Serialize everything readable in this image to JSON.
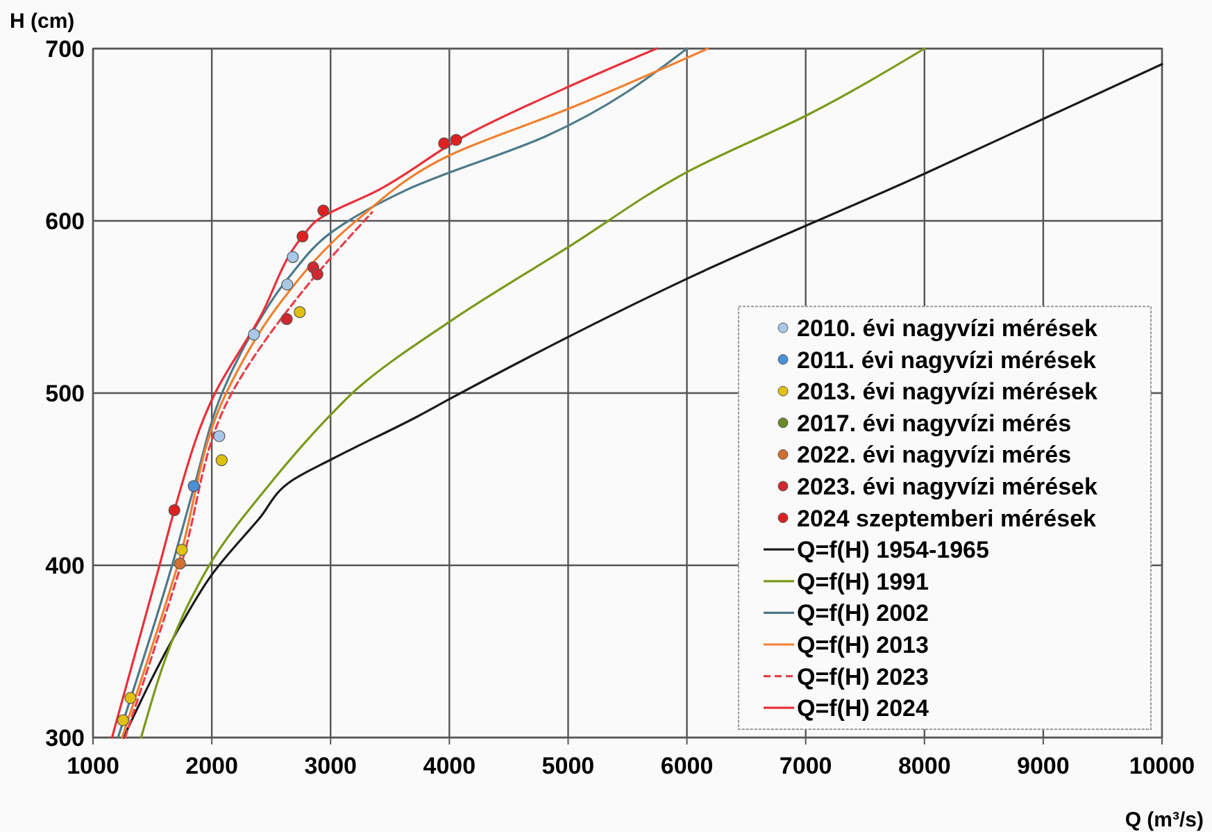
{
  "chart_data": {
    "type": "scatter",
    "ylabel": "H (cm)",
    "xlabel": "Q (m³/s)",
    "xlim": [
      1000,
      10000
    ],
    "xticks": [
      1000,
      2000,
      3000,
      4000,
      5000,
      6000,
      7000,
      8000,
      9000,
      10000
    ],
    "ylim": [
      300,
      700
    ],
    "yticks": [
      300,
      400,
      500,
      600,
      700
    ],
    "grid": true,
    "legend": "bottom right",
    "marker": "circle",
    "series": [
      {
        "name": "2010. évi nagyvízi mérések",
        "color": "#a8c8e8",
        "x": [
          2063,
          2355,
          2635,
          2682
        ],
        "values": [
          475,
          534,
          563,
          579
        ]
      },
      {
        "name": "2011. évi nagyvízi mérések",
        "color": "#4a90d8",
        "x": [
          1848
        ],
        "values": [
          446
        ]
      },
      {
        "name": "2013. évi nagyvízi mérések",
        "color": "#e0c010",
        "x": [
          1253,
          1315,
          1748,
          2083,
          2741
        ],
        "values": [
          310,
          323,
          409,
          461,
          547
        ]
      },
      {
        "name": "2017. évi nagyvízi mérés",
        "color": "#6a8a2a"
      },
      {
        "name": "2022. évi nagyvízi mérés",
        "color": "#d07030",
        "x": [
          1732
        ],
        "values": [
          401
        ]
      },
      {
        "name": "2023. évi nagyvízi mérések",
        "color": "#d02830",
        "x": [
          2631,
          2854,
          2889
        ],
        "values": [
          543,
          573,
          569
        ]
      },
      {
        "name": "2024 szeptemberi mérések",
        "color": "#e02020",
        "x": [
          1685,
          2764,
          2939,
          3956,
          4057
        ],
        "values": [
          432,
          591,
          606,
          645,
          647
        ]
      },
      {
        "name": "Q=f(H) 1954-1965",
        "color": "#1a1a1a",
        "type": "line",
        "marker": "none",
        "x": [
          1257,
          1736,
          2005,
          2398,
          2670,
          3020,
          3720,
          4014,
          6019,
          8021,
          9025,
          10000
        ],
        "values": [
          300,
          365,
          395,
          427,
          449,
          462,
          486,
          497,
          567,
          628,
          660,
          691
        ]
      },
      {
        "name": "Q=f(H) 1991",
        "color": "#7a9a1a",
        "type": "line",
        "marker": "none",
        "x": [
          1405,
          1814,
          2005,
          2474,
          2982,
          3215,
          4014,
          5007,
          6019,
          7029,
          8000
        ],
        "values": [
          300,
          379,
          403,
          446,
          486,
          502,
          542,
          585,
          629,
          662,
          700
        ]
      },
      {
        "name": "Q=f(H) 2002",
        "color": "#4d7a8a",
        "type": "line",
        "marker": "none",
        "x": [
          1210,
          1666,
          1853,
          2086,
          2355,
          2647,
          3020,
          3640,
          4808,
          6000
        ],
        "values": [
          300,
          400,
          446,
          500,
          537,
          567,
          594,
          618,
          649,
          700
        ]
      },
      {
        "name": "Q=f(H) 2013",
        "color": "#f08030",
        "type": "line",
        "marker": "none",
        "x": [
          1245,
          1713,
          2121,
          2550,
          3215,
          4000,
          5000,
          6175
        ],
        "values": [
          300,
          400,
          500,
          550,
          600,
          638,
          665,
          700
        ]
      },
      {
        "name": "Q=f(H) 2023",
        "color": "#e8404a",
        "type": "line",
        "marker": "none",
        "line_style": "dashed",
        "x": [
          1270,
          1740,
          2168,
          2787,
          3350
        ],
        "values": [
          300,
          400,
          500,
          561,
          605
        ]
      },
      {
        "name": "Q=f(H) 2024",
        "color": "#e8303a",
        "type": "line",
        "marker": "none",
        "x": [
          1160,
          1560,
          1685,
          2028,
          2398,
          2764,
          2880,
          3406,
          4150,
          5007,
          5743
        ],
        "values": [
          300,
          400,
          432,
          500,
          543,
          591,
          600,
          618,
          650,
          678,
          700
        ]
      }
    ]
  }
}
